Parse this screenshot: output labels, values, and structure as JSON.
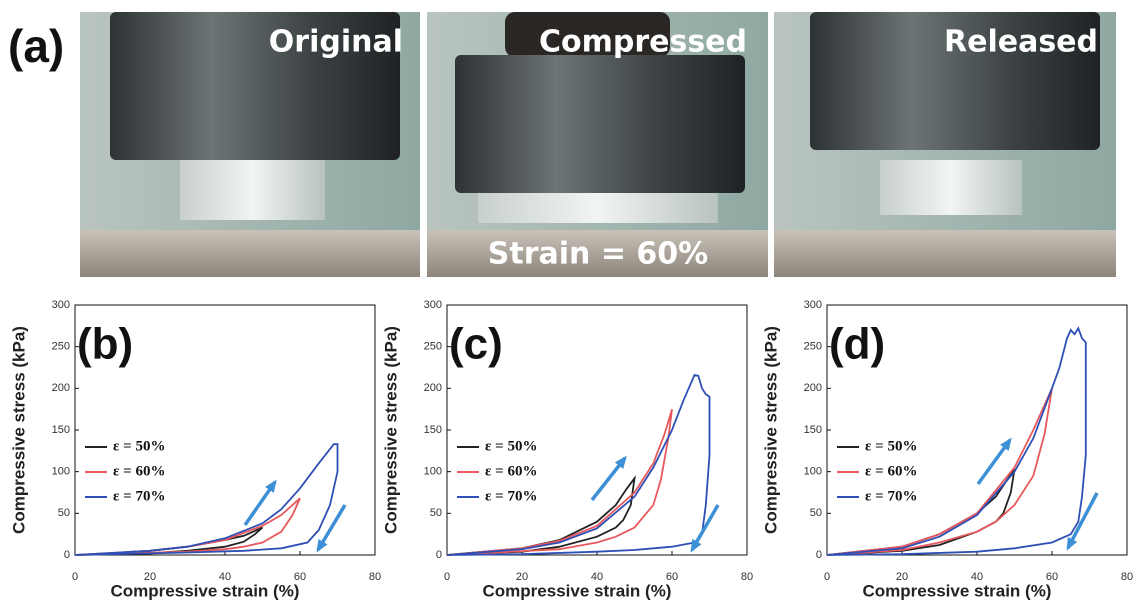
{
  "panel_a": {
    "label": "(a)",
    "photos": [
      {
        "caption": "Original"
      },
      {
        "caption": "Compressed",
        "note": "Strain = 60%"
      },
      {
        "caption": "Released"
      }
    ]
  },
  "chart_data": [
    {
      "type": "line",
      "panel_label": "(b)",
      "x_label": "Compressive strain (%)",
      "y_label": "Compressive stress (kPa)",
      "xlim": [
        0,
        80
      ],
      "ylim": [
        0,
        300
      ],
      "xticks": [
        0,
        20,
        40,
        60,
        80
      ],
      "yticks": [
        0,
        50,
        100,
        150,
        200,
        250,
        300
      ],
      "series": [
        {
          "name": "ε = 50%",
          "color": "#222222",
          "x": [
            0,
            10,
            20,
            30,
            40,
            45,
            50,
            48,
            45,
            40,
            30,
            20,
            0
          ],
          "values": [
            0,
            2,
            5,
            10,
            18,
            23,
            33,
            25,
            16,
            10,
            5,
            2,
            0
          ]
        },
        {
          "name": "ε = 60%",
          "color": "#e8585c",
          "x": [
            0,
            20,
            30,
            40,
            50,
            55,
            60,
            58,
            55,
            50,
            45,
            40,
            30,
            0
          ],
          "values": [
            0,
            5,
            10,
            18,
            35,
            48,
            68,
            48,
            28,
            15,
            10,
            7,
            4,
            0
          ]
        },
        {
          "name": "ε = 70%",
          "color": "#2e4fb5",
          "x": [
            0,
            20,
            30,
            40,
            50,
            55,
            60,
            65,
            69,
            70,
            70,
            68,
            65,
            62,
            55,
            45,
            30,
            0
          ],
          "values": [
            0,
            5,
            10,
            20,
            38,
            55,
            80,
            110,
            133,
            133,
            100,
            60,
            30,
            15,
            8,
            5,
            3,
            0
          ]
        }
      ]
    },
    {
      "type": "line",
      "panel_label": "(c)",
      "x_label": "Compressive strain (%)",
      "y_label": "Compressive stress (kPa)",
      "xlim": [
        0,
        80
      ],
      "ylim": [
        0,
        300
      ],
      "xticks": [
        0,
        20,
        40,
        60,
        80
      ],
      "yticks": [
        0,
        50,
        100,
        150,
        200,
        250,
        300
      ],
      "series": [
        {
          "name": "ε = 50%",
          "color": "#222222",
          "x": [
            0,
            20,
            30,
            40,
            45,
            48,
            50,
            49,
            47,
            45,
            40,
            30,
            20,
            0
          ],
          "values": [
            0,
            8,
            18,
            40,
            60,
            80,
            92,
            60,
            42,
            33,
            22,
            10,
            4,
            0
          ]
        },
        {
          "name": "ε = 60%",
          "color": "#e8585c",
          "x": [
            0,
            20,
            30,
            40,
            50,
            55,
            58,
            60,
            59,
            57,
            55,
            50,
            45,
            40,
            30,
            0
          ],
          "values": [
            0,
            8,
            17,
            35,
            75,
            110,
            145,
            175,
            140,
            90,
            60,
            33,
            22,
            15,
            7,
            0
          ]
        },
        {
          "name": "ε = 70%",
          "color": "#2e4fb5",
          "x": [
            0,
            20,
            30,
            40,
            50,
            55,
            60,
            63,
            66,
            67,
            68,
            69,
            70,
            70,
            69,
            68,
            66,
            60,
            50,
            40,
            20,
            0
          ],
          "values": [
            0,
            7,
            15,
            32,
            70,
            105,
            150,
            185,
            216,
            215,
            200,
            193,
            190,
            120,
            60,
            25,
            15,
            10,
            6,
            4,
            1,
            0
          ]
        }
      ]
    },
    {
      "type": "line",
      "panel_label": "(d)",
      "x_label": "Compressive strain (%)",
      "y_label": "Compressive stress (kPa)",
      "xlim": [
        0,
        80
      ],
      "ylim": [
        0,
        300
      ],
      "xticks": [
        0,
        20,
        40,
        60,
        80
      ],
      "yticks": [
        0,
        50,
        100,
        150,
        200,
        250,
        300
      ],
      "series": [
        {
          "name": "ε = 50%",
          "color": "#222222",
          "x": [
            0,
            20,
            30,
            40,
            45,
            48,
            50,
            49,
            47,
            45,
            40,
            30,
            20,
            0
          ],
          "values": [
            0,
            10,
            25,
            50,
            70,
            90,
            103,
            75,
            50,
            40,
            28,
            12,
            5,
            0
          ]
        },
        {
          "name": "ε = 60%",
          "color": "#e8585c",
          "x": [
            0,
            20,
            30,
            40,
            50,
            55,
            58,
            60,
            58,
            55,
            50,
            45,
            40,
            30,
            20,
            0
          ],
          "values": [
            0,
            10,
            25,
            50,
            105,
            150,
            180,
            200,
            145,
            95,
            60,
            40,
            28,
            15,
            6,
            0
          ]
        },
        {
          "name": "ε = 70%",
          "color": "#2e4fb5",
          "x": [
            0,
            20,
            30,
            40,
            50,
            55,
            60,
            62,
            64,
            65,
            66,
            67,
            68,
            69,
            69,
            69,
            68,
            67,
            65,
            60,
            50,
            40,
            20,
            0
          ],
          "values": [
            0,
            8,
            22,
            48,
            100,
            140,
            200,
            225,
            260,
            270,
            265,
            272,
            260,
            255,
            200,
            120,
            70,
            40,
            25,
            15,
            8,
            4,
            1,
            0
          ]
        }
      ]
    }
  ]
}
